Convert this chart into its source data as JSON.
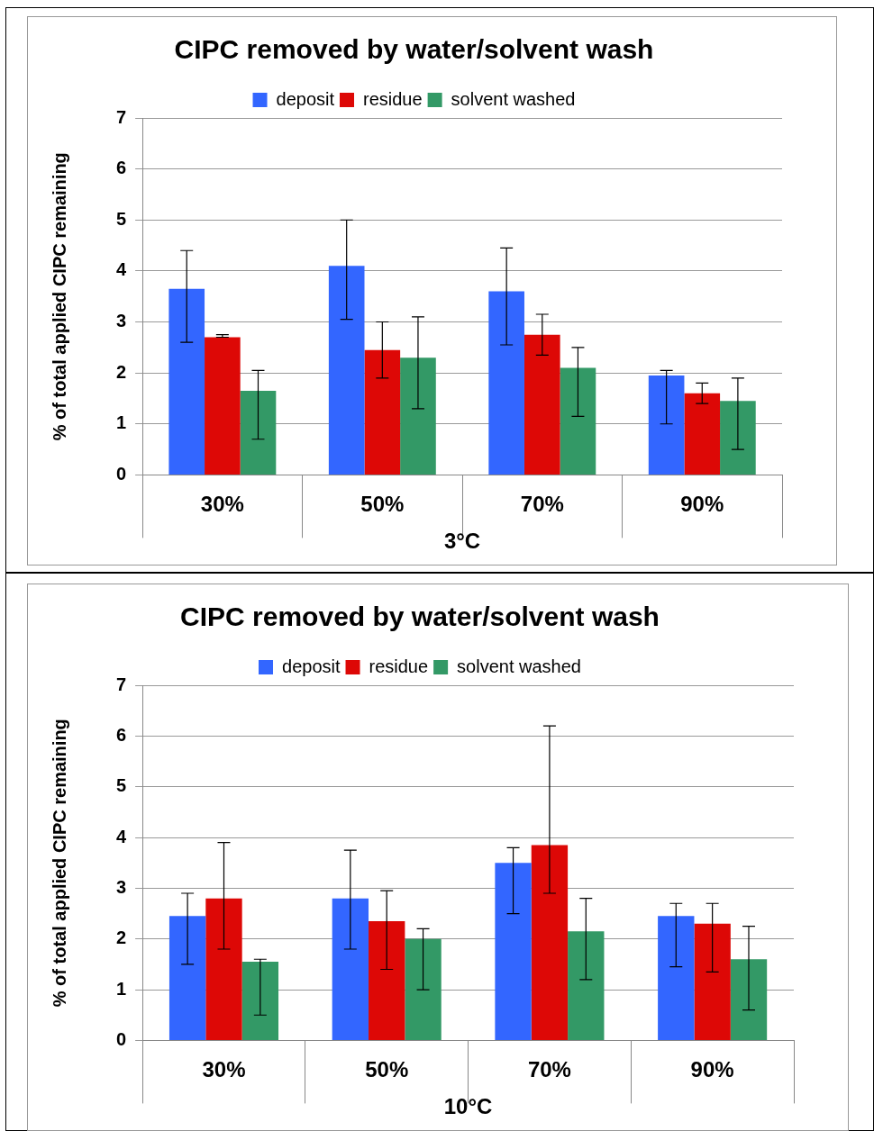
{
  "chart_data": [
    {
      "type": "bar",
      "title": "CIPC removed by water/solvent wash",
      "xlabel": "3°C",
      "ylabel": "% of total applied CIPC remaining",
      "categories": [
        "30%",
        "50%",
        "70%",
        "90%"
      ],
      "ylim": [
        0,
        7
      ],
      "yticks": [
        0,
        1,
        2,
        3,
        4,
        5,
        6,
        7
      ],
      "grid": "y",
      "legend": "top",
      "series": [
        {
          "name": "deposit",
          "color": "#3366ff",
          "values": [
            3.65,
            4.1,
            3.6,
            1.95
          ],
          "errors": [
            [
              2.6,
              4.4
            ],
            [
              3.05,
              5.0
            ],
            [
              2.55,
              4.45
            ],
            [
              1.0,
              2.05
            ]
          ]
        },
        {
          "name": "residue",
          "color": "#dd0806",
          "values": [
            2.7,
            2.45,
            2.75,
            1.6
          ],
          "errors": [
            [
              2.7,
              2.75
            ],
            [
              1.9,
              3.0
            ],
            [
              2.35,
              3.15
            ],
            [
              1.4,
              1.8
            ]
          ]
        },
        {
          "name": "solvent washed",
          "color": "#339966",
          "values": [
            1.65,
            2.3,
            2.1,
            1.45
          ],
          "errors": [
            [
              0.7,
              2.05
            ],
            [
              1.3,
              3.1
            ],
            [
              1.15,
              2.5
            ],
            [
              0.5,
              1.9
            ]
          ]
        }
      ]
    },
    {
      "type": "bar",
      "title": "CIPC removed by water/solvent wash",
      "xlabel": "10°C",
      "ylabel": "% of total applied CIPC remaining",
      "categories": [
        "30%",
        "50%",
        "70%",
        "90%"
      ],
      "ylim": [
        0,
        7
      ],
      "yticks": [
        0,
        1,
        2,
        3,
        4,
        5,
        6,
        7
      ],
      "grid": "y",
      "legend": "top",
      "series": [
        {
          "name": "deposit",
          "color": "#3366ff",
          "values": [
            2.45,
            2.8,
            3.5,
            2.45
          ],
          "errors": [
            [
              1.5,
              2.9
            ],
            [
              1.8,
              3.75
            ],
            [
              2.5,
              3.8
            ],
            [
              1.45,
              2.7
            ]
          ]
        },
        {
          "name": "residue",
          "color": "#dd0806",
          "values": [
            2.8,
            2.35,
            3.85,
            2.3
          ],
          "errors": [
            [
              1.8,
              3.9
            ],
            [
              1.4,
              2.95
            ],
            [
              2.9,
              6.2
            ],
            [
              1.35,
              2.7
            ]
          ]
        },
        {
          "name": "solvent washed",
          "color": "#339966",
          "values": [
            1.55,
            2.0,
            2.15,
            1.6
          ],
          "errors": [
            [
              0.5,
              1.6
            ],
            [
              1.0,
              2.2
            ],
            [
              1.2,
              2.8
            ],
            [
              0.6,
              2.25
            ]
          ]
        }
      ]
    }
  ]
}
